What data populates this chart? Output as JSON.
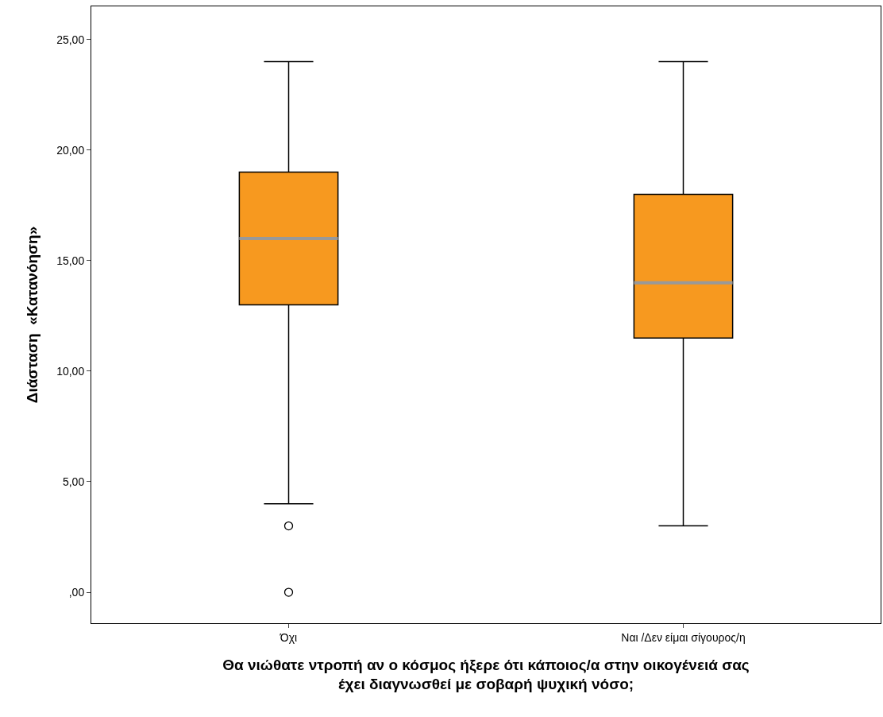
{
  "chart_data": {
    "type": "box",
    "categories": [
      "Όχι",
      "Ναι /Δεν είμαι σίγουρος/η"
    ],
    "xlabel": "Θα νιώθατε ντροπή αν ο κόσμος ήξερε ότι κάποιος/α στην οικογένειά σας\nέχει διαγνωσθεί με σοβαρή ψυχική νόσο;",
    "ylabel": "Διάσταση  «Κατανόηση»",
    "color": "#f7991f",
    "boxes": [
      {
        "low": 4,
        "q1": 13,
        "median": 16,
        "q3": 19,
        "high": 24,
        "outliers": [
          3,
          0
        ]
      },
      {
        "low": 3,
        "q1": 11.5,
        "median": 14,
        "q3": 18,
        "high": 24
      }
    ],
    "ylim": [
      -1.4,
      26.5
    ],
    "yticks": [
      {
        "value": 0,
        "label": ",00"
      },
      {
        "value": 5,
        "label": "5,00"
      },
      {
        "value": 10,
        "label": "10,00"
      },
      {
        "value": 15,
        "label": "15,00"
      },
      {
        "value": 20,
        "label": "20,00"
      },
      {
        "value": 25,
        "label": "25,00"
      }
    ]
  }
}
